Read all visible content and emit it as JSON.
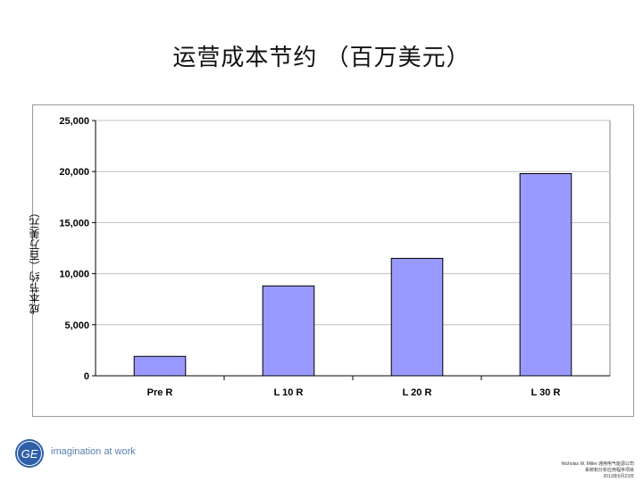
{
  "slide": {
    "title": "运营成本节约 （百万美元）",
    "tagline": "imagination at work",
    "logo_text": "GE",
    "footer_lines": [
      "Nicholas W. Miller 通用电气能源公司",
      "系统和分析应用程序项目",
      "2013年6月23日"
    ]
  },
  "colors": {
    "bar_fill": "#9999ff",
    "bar_stroke": "#000000",
    "gridline": "#c0c0c0",
    "plot_border": "#808080",
    "logo_blue": "#2f5fa8"
  },
  "chart_data": {
    "type": "bar",
    "title": "运营成本节约 （百万美元）",
    "xlabel": "",
    "ylabel": "成本节约（百万美元）",
    "categories": [
      "Pre R",
      "L 10 R",
      "L 20 R",
      "L 30 R"
    ],
    "values": [
      1900,
      8800,
      11500,
      19800
    ],
    "ylim": [
      0,
      25000
    ],
    "yticks": [
      0,
      5000,
      10000,
      15000,
      20000,
      25000
    ],
    "ytick_labels": [
      "0",
      "5,000",
      "10,000",
      "15,000",
      "20,000",
      "25,000"
    ],
    "grid": true,
    "legend": "none"
  }
}
